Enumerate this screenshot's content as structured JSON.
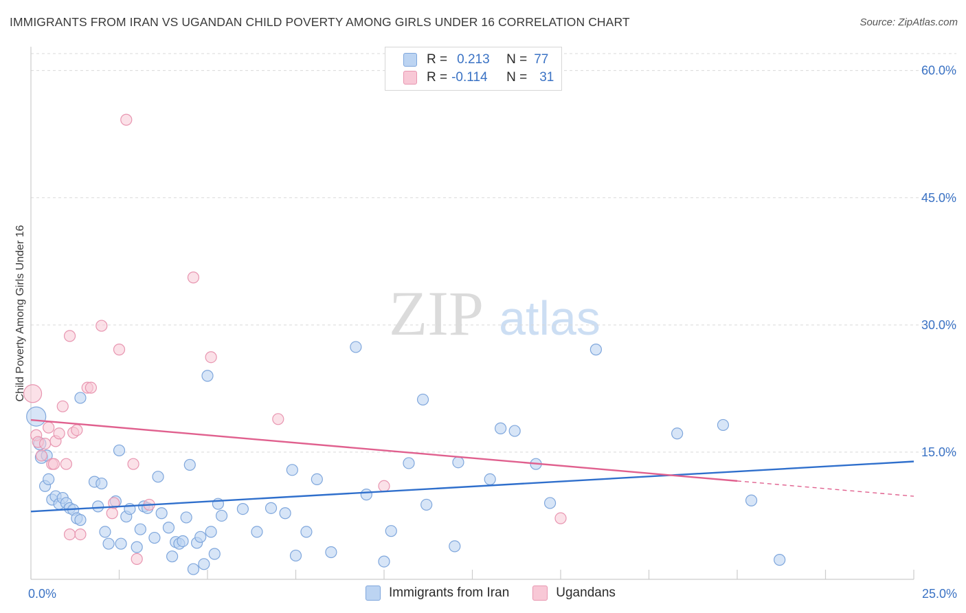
{
  "header": {
    "title": "IMMIGRANTS FROM IRAN VS UGANDAN CHILD POVERTY AMONG GIRLS UNDER 16 CORRELATION CHART",
    "source": "Source: ZipAtlas.com"
  },
  "watermark": {
    "zip": "ZIP",
    "atlas": "atlas"
  },
  "legend": {
    "series1": {
      "r_label": "R =",
      "r_value": "0.213",
      "n_label": "N =",
      "n_value": "77"
    },
    "series2": {
      "r_label": "R =",
      "r_value": "-0.114",
      "n_label": "N =",
      "n_value": "31"
    }
  },
  "bottom_legend": {
    "series1": "Immigrants from Iran",
    "series2": "Ugandans"
  },
  "colors": {
    "series1_fill": "#bcd4f2",
    "series1_stroke": "#7ea6dc",
    "series1_line": "#2f6fcc",
    "series2_fill": "#f8c8d6",
    "series2_stroke": "#e895b0",
    "series2_line": "#e0608e",
    "axis_label": "#3a72c4",
    "grid": "#d9d9d9"
  },
  "chart_data": {
    "type": "scatter",
    "title": "IMMIGRANTS FROM IRAN VS UGANDAN CHILD POVERTY AMONG GIRLS UNDER 16 CORRELATION CHART",
    "xlabel": "",
    "ylabel": "Child Poverty Among Girls Under 16",
    "xlim": [
      0,
      25
    ],
    "ylim": [
      0,
      62
    ],
    "x_ticks": [
      0,
      25
    ],
    "x_tick_labels": [
      "0.0%",
      "25.0%"
    ],
    "y_ticks": [
      15,
      30,
      45,
      60
    ],
    "y_tick_labels": [
      "15.0%",
      "30.0%",
      "45.0%",
      "60.0%"
    ],
    "grid": true,
    "legend_position": "top-center",
    "series": [
      {
        "name": "Immigrants from Iran",
        "r": 0.213,
        "n": 77,
        "trend": {
          "x": [
            0,
            25
          ],
          "y": [
            8.0,
            13.9
          ]
        },
        "points": [
          [
            0.15,
            19.2,
            14
          ],
          [
            0.25,
            16.0,
            9
          ],
          [
            0.3,
            14.4,
            9
          ],
          [
            0.4,
            11.0,
            8
          ],
          [
            0.5,
            11.8,
            8
          ],
          [
            0.6,
            9.4,
            8
          ],
          [
            0.7,
            9.8,
            8
          ],
          [
            0.8,
            8.9,
            8
          ],
          [
            0.9,
            9.6,
            8
          ],
          [
            1.0,
            9.0,
            8
          ],
          [
            1.1,
            8.4,
            8
          ],
          [
            1.2,
            8.2,
            8
          ],
          [
            1.3,
            7.2,
            8
          ],
          [
            1.4,
            7.0,
            8
          ],
          [
            1.4,
            21.4,
            8
          ],
          [
            1.8,
            11.5,
            8
          ],
          [
            1.9,
            8.6,
            8
          ],
          [
            2.0,
            11.3,
            8
          ],
          [
            2.1,
            5.6,
            8
          ],
          [
            2.2,
            4.2,
            8
          ],
          [
            2.4,
            9.2,
            8
          ],
          [
            2.5,
            15.2,
            8
          ],
          [
            2.55,
            4.2,
            8
          ],
          [
            2.7,
            7.4,
            8
          ],
          [
            2.8,
            8.3,
            8
          ],
          [
            3.0,
            3.8,
            8
          ],
          [
            3.1,
            5.9,
            8
          ],
          [
            3.2,
            8.6,
            8
          ],
          [
            3.3,
            8.4,
            8
          ],
          [
            3.5,
            4.9,
            8
          ],
          [
            3.6,
            12.1,
            8
          ],
          [
            3.7,
            7.8,
            8
          ],
          [
            3.9,
            6.1,
            8
          ],
          [
            4.0,
            2.7,
            8
          ],
          [
            4.1,
            4.4,
            8
          ],
          [
            4.2,
            4.2,
            8
          ],
          [
            4.3,
            4.5,
            8
          ],
          [
            4.4,
            7.3,
            8
          ],
          [
            4.5,
            13.5,
            8
          ],
          [
            4.6,
            1.2,
            8
          ],
          [
            4.7,
            4.3,
            8
          ],
          [
            4.8,
            5.0,
            8
          ],
          [
            4.9,
            1.8,
            8
          ],
          [
            5.0,
            24.0,
            8
          ],
          [
            5.1,
            5.6,
            8
          ],
          [
            5.2,
            3.0,
            8
          ],
          [
            5.3,
            8.9,
            8
          ],
          [
            5.4,
            7.5,
            8
          ],
          [
            6.0,
            8.3,
            8
          ],
          [
            6.4,
            5.6,
            8
          ],
          [
            6.8,
            8.4,
            8
          ],
          [
            7.2,
            7.8,
            8
          ],
          [
            7.4,
            12.9,
            8
          ],
          [
            7.5,
            2.8,
            8
          ],
          [
            7.8,
            5.6,
            8
          ],
          [
            8.1,
            11.8,
            8
          ],
          [
            8.5,
            3.2,
            8
          ],
          [
            9.2,
            27.4,
            8
          ],
          [
            9.5,
            10.0,
            8
          ],
          [
            10.0,
            2.1,
            8
          ],
          [
            10.2,
            5.7,
            8
          ],
          [
            10.7,
            13.7,
            8
          ],
          [
            11.1,
            21.2,
            8
          ],
          [
            11.2,
            8.8,
            8
          ],
          [
            12.0,
            3.9,
            8
          ],
          [
            12.1,
            13.8,
            8
          ],
          [
            13.0,
            11.8,
            8
          ],
          [
            13.3,
            17.8,
            8
          ],
          [
            13.7,
            17.5,
            8
          ],
          [
            14.3,
            13.6,
            8
          ],
          [
            14.7,
            9.0,
            8
          ],
          [
            16.0,
            27.1,
            8
          ],
          [
            18.3,
            17.2,
            8
          ],
          [
            19.6,
            18.2,
            8
          ],
          [
            20.4,
            9.3,
            8
          ],
          [
            21.2,
            2.3,
            8
          ],
          [
            0.45,
            14.6,
            8
          ]
        ]
      },
      {
        "name": "Ugandans",
        "r": -0.114,
        "n": 31,
        "trend": {
          "x": [
            0,
            25
          ],
          "y": [
            18.8,
            9.8
          ],
          "solid_until_x": 20
        },
        "points": [
          [
            0.05,
            21.9,
            13
          ],
          [
            0.15,
            17.0,
            8
          ],
          [
            0.2,
            16.2,
            8
          ],
          [
            0.3,
            14.6,
            8
          ],
          [
            0.4,
            16.0,
            8
          ],
          [
            0.5,
            17.9,
            8
          ],
          [
            0.6,
            13.6,
            8
          ],
          [
            0.65,
            13.6,
            8
          ],
          [
            0.7,
            16.3,
            8
          ],
          [
            0.8,
            17.2,
            8
          ],
          [
            0.9,
            20.4,
            8
          ],
          [
            1.0,
            13.6,
            8
          ],
          [
            1.1,
            28.7,
            8
          ],
          [
            1.2,
            17.3,
            8
          ],
          [
            1.3,
            17.6,
            8
          ],
          [
            1.1,
            5.3,
            8
          ],
          [
            1.4,
            5.3,
            8
          ],
          [
            1.6,
            22.6,
            8
          ],
          [
            1.7,
            22.6,
            8
          ],
          [
            2.0,
            29.9,
            8
          ],
          [
            2.3,
            7.8,
            8
          ],
          [
            2.35,
            9.0,
            8
          ],
          [
            2.5,
            27.1,
            8
          ],
          [
            2.7,
            54.2,
            8
          ],
          [
            2.9,
            13.6,
            8
          ],
          [
            3.0,
            2.4,
            8
          ],
          [
            3.35,
            8.8,
            8
          ],
          [
            4.6,
            35.6,
            8
          ],
          [
            5.1,
            26.2,
            8
          ],
          [
            7.0,
            18.9,
            8
          ],
          [
            10.0,
            11.0,
            8
          ],
          [
            15.0,
            7.2,
            8
          ]
        ]
      }
    ]
  }
}
